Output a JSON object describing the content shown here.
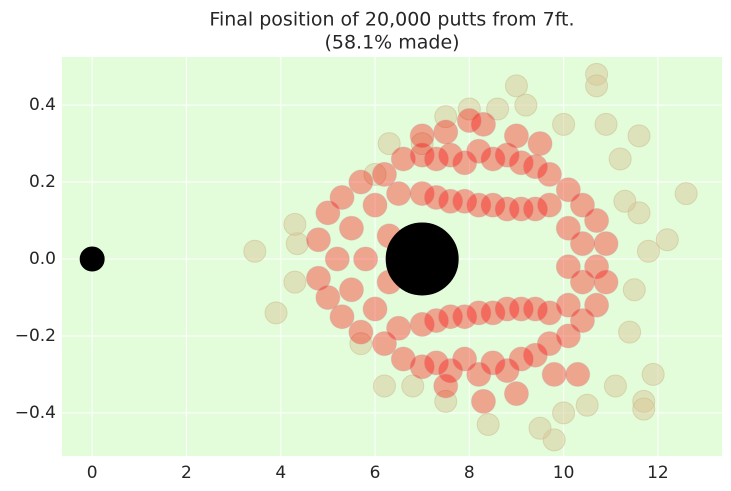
{
  "chart_data": {
    "type": "scatter",
    "title": "Final position of 20,000 putts from 7ft.",
    "subtitle": "(58.1% made)",
    "xlim": [
      -0.64,
      13.36
    ],
    "ylim": [
      -0.512,
      0.525
    ],
    "xticks": [
      0,
      2,
      4,
      6,
      8,
      10,
      12
    ],
    "yticks": [
      {
        "value": -0.4,
        "label": "−0.4"
      },
      {
        "value": -0.2,
        "label": "−0.2"
      },
      {
        "value": 0,
        "label": "0.0"
      },
      0.2,
      0.4
    ],
    "grid": true,
    "background": "#e3fddb",
    "series": [
      {
        "color": "#d9c79a",
        "edgecolor": "#c9b98a",
        "alpha": 0.5,
        "marker_radius": 11,
        "x": [
          3.45,
          3.9,
          4.3,
          4.35,
          4.3,
          6.0,
          6.3,
          7.0,
          7.5,
          8.0,
          8.6,
          9.0,
          9.2,
          10.7,
          10.7,
          11.6,
          10.0,
          11.2,
          11.6,
          12.6,
          12.2,
          11.8,
          11.5,
          11.4,
          11.1,
          11.9,
          11.7,
          11.7,
          10.5,
          10.0,
          9.8,
          9.5,
          8.4,
          7.5,
          6.8,
          6.2,
          5.7,
          10.9,
          11.3
        ],
        "y": [
          0.02,
          -0.14,
          -0.06,
          0.04,
          0.09,
          0.22,
          0.3,
          0.3,
          0.37,
          0.39,
          0.39,
          0.45,
          0.4,
          0.48,
          0.45,
          0.32,
          0.35,
          0.26,
          0.12,
          0.17,
          0.05,
          0.02,
          -0.08,
          -0.19,
          -0.33,
          -0.3,
          -0.37,
          -0.39,
          -0.38,
          -0.4,
          -0.47,
          -0.44,
          -0.43,
          -0.37,
          -0.33,
          -0.33,
          -0.22,
          0.35,
          0.15
        ]
      },
      {
        "color": "#ff0000",
        "edgecolor": "#c8a0a0",
        "alpha": 0.35,
        "marker_radius": 12,
        "x": [
          4.8,
          4.8,
          5.0,
          5.0,
          5.2,
          5.3,
          5.3,
          5.5,
          5.5,
          5.7,
          5.7,
          5.8,
          6.0,
          6.0,
          6.2,
          6.2,
          6.3,
          6.3,
          6.5,
          6.5,
          6.6,
          6.6,
          7.0,
          7.0,
          7.3,
          7.3,
          7.6,
          7.6,
          7.9,
          7.9,
          8.2,
          8.2,
          8.5,
          8.5,
          8.8,
          8.8,
          9.1,
          9.1,
          9.4,
          9.4,
          9.7,
          9.7,
          7.0,
          7.0,
          7.3,
          7.3,
          7.6,
          7.6,
          7.9,
          7.9,
          8.2,
          8.2,
          8.5,
          8.5,
          8.8,
          8.8,
          9.1,
          9.1,
          9.4,
          9.4,
          9.7,
          9.7,
          10.1,
          10.1,
          10.1,
          10.1,
          10.1,
          10.4,
          10.4,
          10.4,
          10.4,
          10.7,
          10.7,
          10.7,
          10.9,
          10.9,
          7.5,
          8.3,
          9.0,
          8.0,
          7.0,
          9.5,
          7.5,
          8.3,
          9.0,
          9.8,
          10.3
        ],
        "y": [
          0.05,
          -0.05,
          0.12,
          -0.1,
          0.0,
          0.16,
          -0.15,
          0.08,
          -0.08,
          0.2,
          -0.19,
          0.0,
          0.14,
          -0.13,
          0.22,
          -0.22,
          0.06,
          -0.06,
          0.17,
          -0.18,
          0.26,
          -0.26,
          0.17,
          0.27,
          0.16,
          0.26,
          0.15,
          0.27,
          0.15,
          0.25,
          0.14,
          0.28,
          0.14,
          0.26,
          0.13,
          0.27,
          0.13,
          0.25,
          0.13,
          0.24,
          0.14,
          0.22,
          -0.17,
          -0.28,
          -0.16,
          -0.27,
          -0.15,
          -0.29,
          -0.15,
          -0.26,
          -0.14,
          -0.3,
          -0.14,
          -0.27,
          -0.13,
          -0.29,
          -0.13,
          -0.26,
          -0.13,
          -0.25,
          -0.14,
          -0.22,
          0.18,
          0.08,
          -0.02,
          -0.12,
          -0.2,
          0.14,
          0.04,
          -0.06,
          -0.16,
          0.1,
          -0.02,
          -0.12,
          0.04,
          -0.06,
          0.33,
          0.35,
          0.32,
          0.36,
          0.32,
          0.3,
          -0.33,
          -0.37,
          -0.35,
          -0.3,
          -0.3
        ]
      },
      {
        "color": "#000000",
        "edgecolor": "#000000",
        "alpha": 1,
        "marker_radius": 12,
        "x": [
          0
        ],
        "y": [
          0
        ]
      },
      {
        "color": "#000000",
        "edgecolor": "#000000",
        "alpha": 1,
        "marker_radius": 36,
        "x": [
          7
        ],
        "y": [
          0
        ]
      }
    ]
  }
}
